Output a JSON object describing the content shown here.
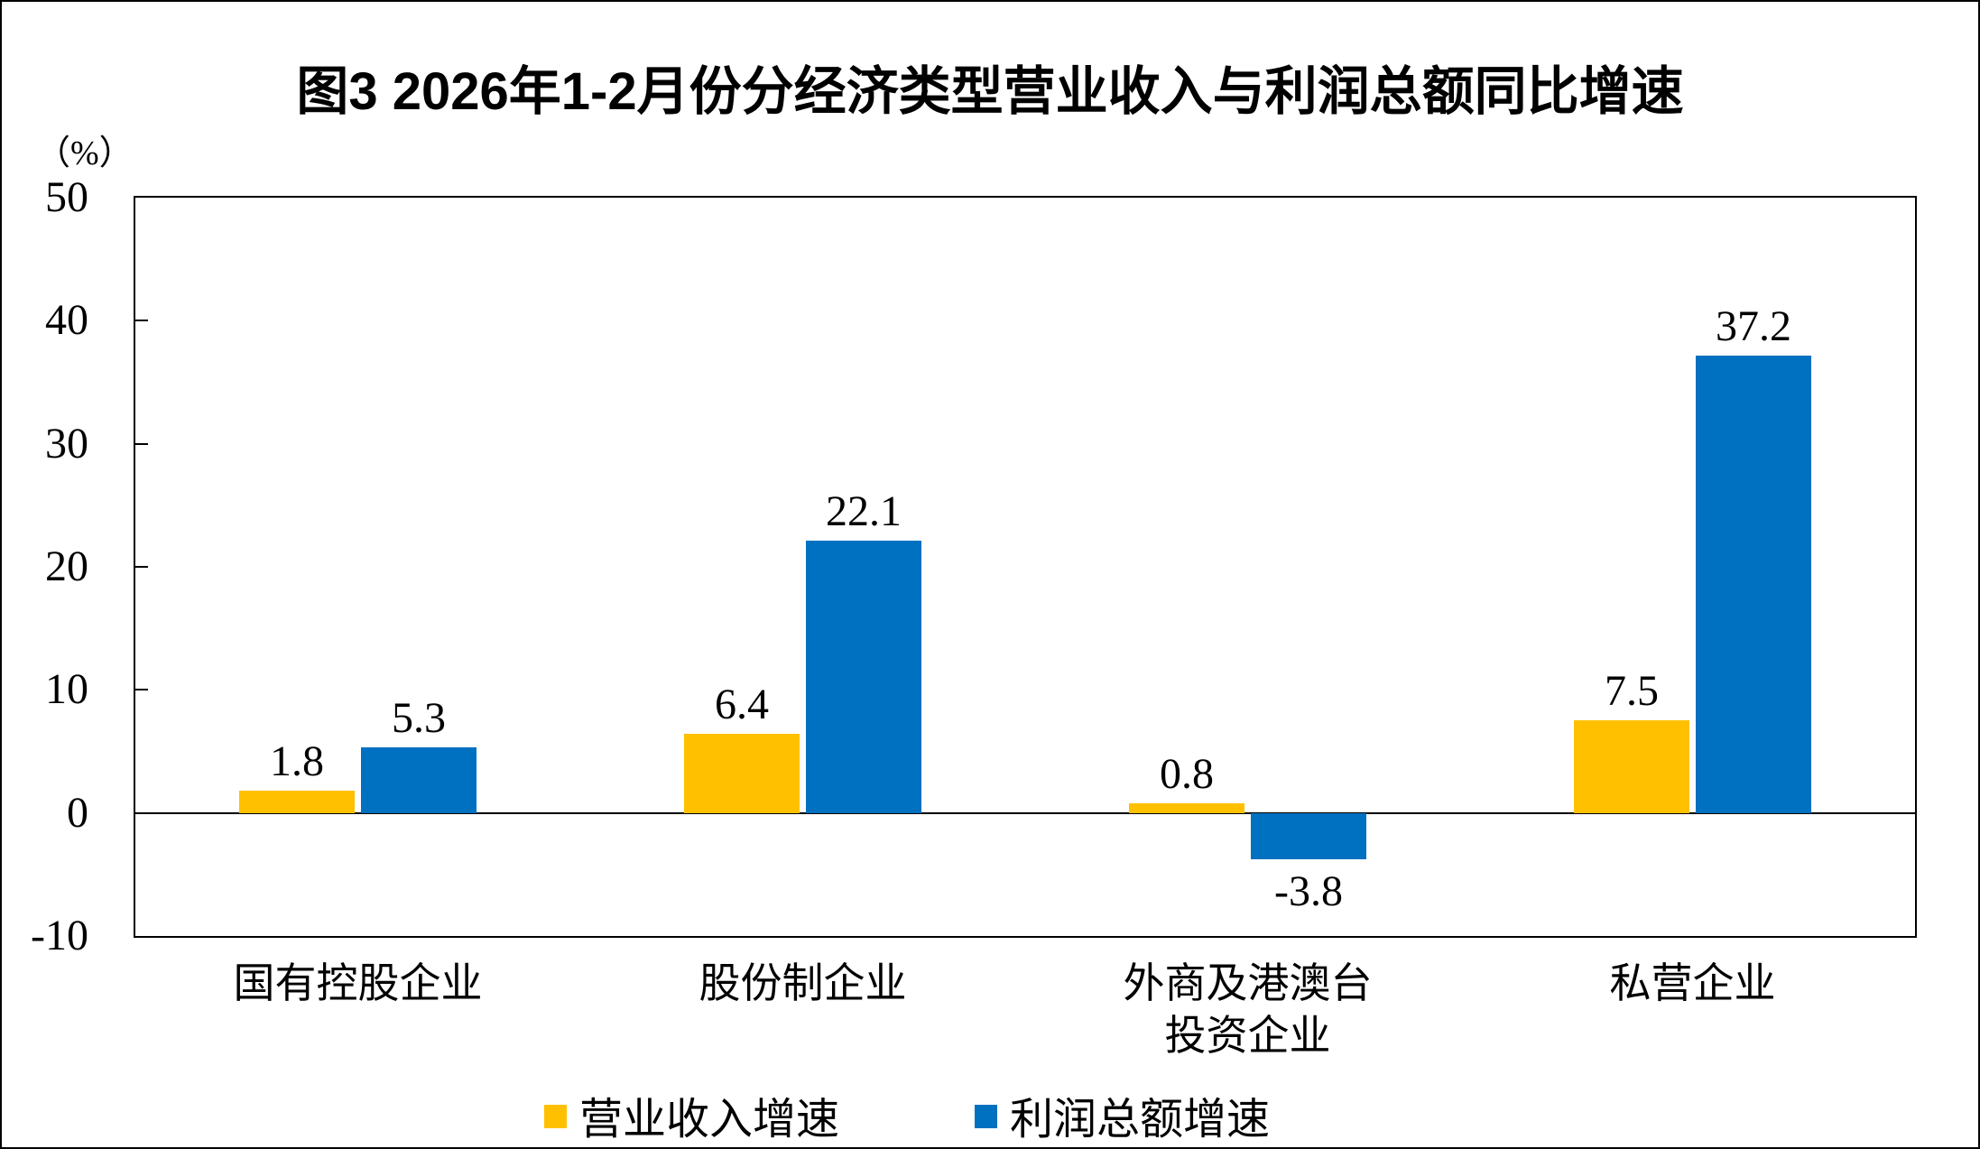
{
  "chart_data": {
    "type": "bar",
    "title": "图3 2026年1-2月份分经济类型营业收入与利润总额同比增速",
    "unit": "（%）",
    "categories": [
      [
        "国有控股企业"
      ],
      [
        "股份制企业"
      ],
      [
        "外商及港澳台",
        "投资企业"
      ],
      [
        "私营企业"
      ]
    ],
    "series": [
      {
        "name": "营业收入增速",
        "color": "#FFC000",
        "values": [
          1.8,
          6.4,
          0.8,
          7.5
        ]
      },
      {
        "name": "利润总额增速",
        "color": "#0070C0",
        "values": [
          5.3,
          22.1,
          -3.8,
          37.2
        ]
      }
    ],
    "ylim": [
      -10,
      50
    ],
    "y_ticks": [
      50,
      40,
      30,
      20,
      10,
      0,
      -10
    ],
    "grid": "none",
    "baseline": 0,
    "legend_position": "bottom"
  }
}
